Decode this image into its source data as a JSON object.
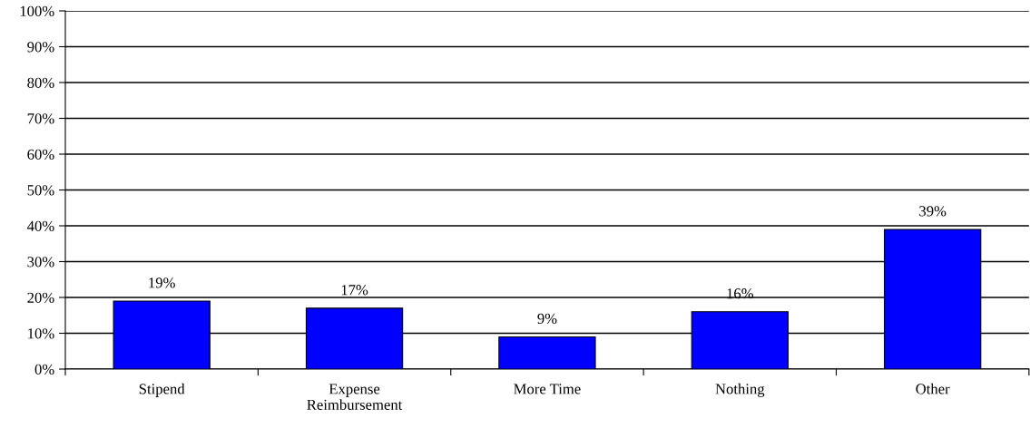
{
  "chart_data": {
    "type": "bar",
    "categories": [
      "Stipend",
      "Expense\nReimbursement",
      "More Time",
      "Nothing",
      "Other"
    ],
    "values": [
      19,
      17,
      9,
      16,
      39
    ],
    "color": "#0000ff",
    "value_labels": [
      "19%",
      "17%",
      "9%",
      "16%",
      "39%"
    ],
    "ylim": [
      0,
      100
    ],
    "yticks": [
      {
        "value": 0,
        "label": "0%"
      },
      {
        "value": 10,
        "label": "10%"
      },
      {
        "value": 20,
        "label": "20%"
      },
      {
        "value": 30,
        "label": "30%"
      },
      {
        "value": 40,
        "label": "40%"
      },
      {
        "value": 50,
        "label": "50%"
      },
      {
        "value": 60,
        "label": "60%"
      },
      {
        "value": 70,
        "label": "70%"
      },
      {
        "value": 80,
        "label": "80%"
      },
      {
        "value": 90,
        "label": "90%"
      },
      {
        "value": 100,
        "label": "100%"
      }
    ],
    "grid": "y",
    "legend": false
  }
}
